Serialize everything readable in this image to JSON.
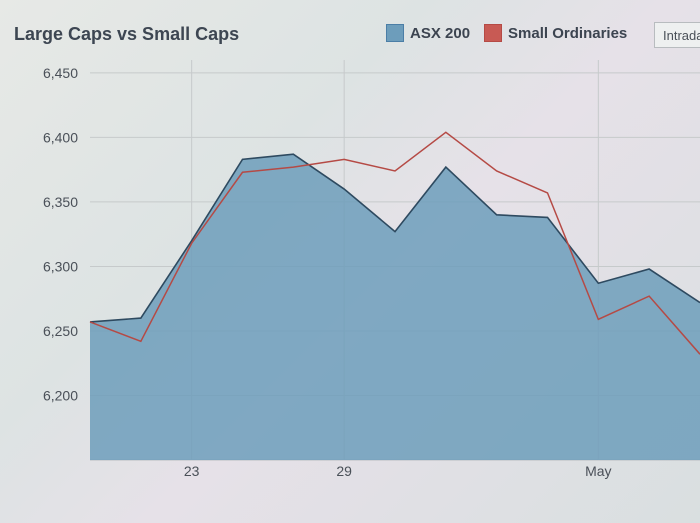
{
  "chart_data": {
    "type": "area",
    "title": "Large Caps vs Small Caps",
    "xlabel": "",
    "ylabel": "",
    "x_ticks": [
      "23",
      "29",
      "May"
    ],
    "y_ticks": [
      "6,450",
      "6,400",
      "6,350",
      "6,300",
      "6,250",
      "6,200"
    ],
    "y_tick_values": [
      6450,
      6400,
      6350,
      6300,
      6250,
      6200
    ],
    "ylim": [
      6150,
      6460
    ],
    "x": [
      0,
      1,
      2,
      3,
      4,
      5,
      6,
      7,
      8,
      9,
      10,
      11,
      12
    ],
    "x_tick_positions": [
      2,
      5,
      10
    ],
    "series": [
      {
        "name": "ASX 200",
        "color": "#4b7ea6",
        "fill": "#6d9dbb",
        "values": [
          6257,
          6260,
          6320,
          6383,
          6387,
          6360,
          6327,
          6377,
          6340,
          6338,
          6287,
          6298,
          6272
        ]
      },
      {
        "name": "Small Ordinaries",
        "color": "#b54a45",
        "values": [
          6257,
          6242,
          6318,
          6373,
          6377,
          6383,
          6374,
          6404,
          6374,
          6357,
          6259,
          6277,
          6232
        ]
      }
    ],
    "grid": true,
    "legend": "top-right"
  },
  "controls": {
    "range_label": "Intraday"
  }
}
